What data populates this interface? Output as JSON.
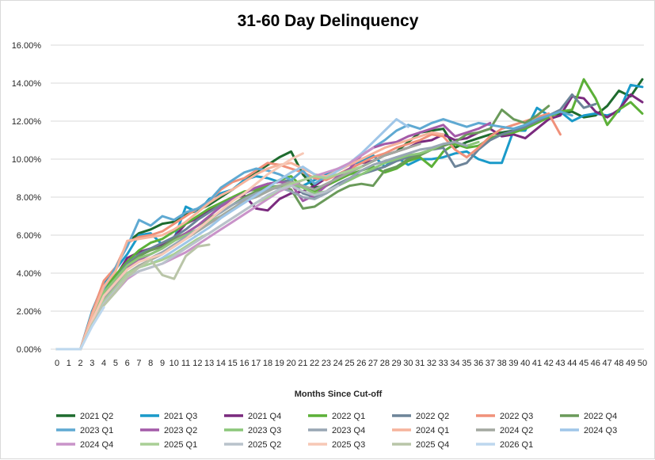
{
  "chart_data": {
    "type": "line",
    "title": "31-60 Day Delinquency",
    "xlabel": "Months Since Cut-off",
    "ylabel": "",
    "x": [
      0,
      1,
      2,
      3,
      4,
      5,
      6,
      7,
      8,
      9,
      10,
      11,
      12,
      13,
      14,
      15,
      16,
      17,
      18,
      19,
      20,
      21,
      22,
      23,
      24,
      25,
      26,
      27,
      28,
      29,
      30,
      31,
      32,
      33,
      34,
      35,
      36,
      37,
      38,
      39,
      40,
      41,
      42,
      43,
      44,
      45,
      46,
      47,
      48,
      49,
      50
    ],
    "x_tick_labels": [
      "0",
      "1",
      "2",
      "3",
      "4",
      "5",
      "6",
      "7",
      "8",
      "9",
      "10",
      "11",
      "12",
      "13",
      "14",
      "15",
      "16",
      "17",
      "18",
      "19",
      "20",
      "21",
      "22",
      "23",
      "24",
      "25",
      "26",
      "27",
      "28",
      "29",
      "30",
      "31",
      "32",
      "33",
      "34",
      "35",
      "36",
      "37",
      "38",
      "39",
      "40",
      "41",
      "42",
      "43",
      "44",
      "45",
      "46",
      "47",
      "48",
      "49",
      "50"
    ],
    "y_tick_labels": [
      "0.00%",
      "2.00%",
      "4.00%",
      "6.00%",
      "8.00%",
      "10.00%",
      "12.00%",
      "14.00%",
      "16.00%"
    ],
    "ylim": [
      0,
      16
    ],
    "y_format": "percent",
    "grid": "horizontal",
    "legend_position": "bottom",
    "series": [
      {
        "name": "2021 Q2",
        "color": "#1e6b2e",
        "values": [
          0,
          0,
          0,
          1.5,
          3.0,
          4.2,
          5.6,
          6.1,
          6.3,
          6.6,
          6.7,
          7.1,
          7.3,
          7.6,
          8.0,
          8.4,
          8.9,
          9.3,
          9.7,
          10.1,
          10.4,
          9.2,
          8.5,
          8.6,
          9.0,
          9.3,
          9.6,
          9.9,
          10.2,
          10.4,
          10.9,
          11.4,
          11.5,
          11.6,
          10.6,
          10.9,
          11.1,
          11.3,
          11.4,
          11.5,
          11.7,
          12.0,
          12.3,
          12.4,
          12.5,
          12.2,
          12.3,
          12.8,
          13.6,
          13.3,
          14.2
        ]
      },
      {
        "name": "2021 Q3",
        "color": "#1a9ac9",
        "values": [
          0,
          0,
          0,
          2.0,
          3.5,
          4.2,
          5.0,
          6.0,
          6.1,
          5.5,
          5.8,
          7.5,
          7.2,
          7.9,
          8.2,
          8.4,
          8.9,
          9.1,
          9.0,
          8.8,
          8.7,
          8.6,
          8.9,
          9.2,
          9.5,
          9.7,
          9.9,
          10.2,
          9.6,
          10.1,
          9.7,
          10.0,
          10.0,
          10.1,
          10.3,
          10.4,
          10.0,
          9.8,
          9.8,
          11.5,
          11.5,
          12.7,
          12.3,
          12.5,
          12.0,
          12.3,
          12.4,
          12.3,
          12.5,
          13.9,
          13.8
        ]
      },
      {
        "name": "2021 Q4",
        "color": "#7a2a7e",
        "values": [
          0,
          0,
          0,
          1.8,
          3.3,
          3.8,
          4.8,
          5.1,
          5.3,
          5.5,
          5.9,
          6.6,
          6.9,
          7.3,
          7.6,
          7.9,
          8.1,
          7.4,
          7.3,
          7.9,
          8.2,
          8.3,
          8.6,
          9.0,
          9.2,
          9.5,
          9.8,
          9.9,
          10.2,
          10.4,
          10.6,
          10.9,
          11.0,
          11.3,
          11.0,
          11.1,
          11.4,
          11.6,
          11.2,
          11.3,
          11.1,
          11.6,
          12.1,
          12.3,
          13.3,
          13.2,
          12.5,
          12.2,
          12.6,
          13.4,
          13.0
        ]
      },
      {
        "name": "2022 Q1",
        "color": "#5cb038",
        "values": [
          0,
          0,
          0,
          1.7,
          3.1,
          3.9,
          4.6,
          5.2,
          5.6,
          5.8,
          6.2,
          6.6,
          7.0,
          7.4,
          7.7,
          8.0,
          8.3,
          8.4,
          8.6,
          8.9,
          9.1,
          8.5,
          8.3,
          8.6,
          8.9,
          9.2,
          9.4,
          9.6,
          9.3,
          9.5,
          9.9,
          10.1,
          9.6,
          10.4,
          10.8,
          10.6,
          10.7,
          11.1,
          11.3,
          11.4,
          11.6,
          11.9,
          12.2,
          12.5,
          12.6,
          14.2,
          13.2,
          11.8,
          12.6,
          13.0,
          12.4
        ]
      },
      {
        "name": "2022 Q2",
        "color": "#6d8499",
        "values": [
          0,
          0,
          0,
          1.6,
          3.0,
          3.7,
          4.5,
          5.0,
          5.3,
          5.6,
          5.9,
          6.3,
          6.8,
          7.2,
          7.6,
          7.9,
          8.2,
          8.5,
          8.7,
          8.8,
          8.9,
          8.2,
          8.0,
          8.3,
          8.7,
          9.0,
          9.2,
          9.4,
          9.6,
          9.9,
          10.1,
          10.3,
          10.5,
          10.6,
          9.6,
          9.8,
          10.5,
          11.0,
          11.3,
          11.5,
          11.7,
          12.0,
          12.3,
          12.6,
          13.4,
          12.7,
          12.9,
          null,
          null,
          null,
          null
        ]
      },
      {
        "name": "2022 Q3",
        "color": "#f0917a",
        "values": [
          0,
          0,
          0,
          1.9,
          3.6,
          4.3,
          5.6,
          5.9,
          6.0,
          6.2,
          6.6,
          7.0,
          7.4,
          7.8,
          8.4,
          8.8,
          9.0,
          9.4,
          9.8,
          9.7,
          9.5,
          9.3,
          9.0,
          8.9,
          9.2,
          9.5,
          9.8,
          10.1,
          10.3,
          10.6,
          10.8,
          11.0,
          11.3,
          11.2,
          10.5,
          10.1,
          10.6,
          11.2,
          11.6,
          11.8,
          12.0,
          12.2,
          12.4,
          11.3,
          null,
          null,
          null,
          null,
          null,
          null,
          null
        ]
      },
      {
        "name": "2022 Q4",
        "color": "#6a9a5a",
        "values": [
          0,
          0,
          0,
          1.5,
          2.8,
          3.6,
          4.4,
          4.9,
          5.2,
          5.4,
          5.8,
          6.1,
          6.5,
          6.9,
          7.2,
          7.6,
          8.0,
          8.3,
          8.5,
          8.6,
          8.4,
          7.4,
          7.5,
          7.9,
          8.3,
          8.6,
          8.7,
          8.6,
          9.4,
          9.6,
          10.0,
          10.2,
          10.5,
          10.7,
          10.9,
          11.3,
          11.4,
          11.6,
          12.6,
          12.1,
          11.9,
          12.3,
          12.8,
          null,
          null,
          null,
          null,
          null,
          null,
          null,
          null
        ]
      },
      {
        "name": "2023 Q1",
        "color": "#5fa9d2",
        "values": [
          0,
          0,
          0,
          1.6,
          3.2,
          4.3,
          5.4,
          6.8,
          6.5,
          7.0,
          6.8,
          7.2,
          7.4,
          7.8,
          8.5,
          8.9,
          9.3,
          9.5,
          9.4,
          9.2,
          8.9,
          9.4,
          8.7,
          9.1,
          9.4,
          9.7,
          10.2,
          10.6,
          11.0,
          11.5,
          11.8,
          11.6,
          11.9,
          12.1,
          11.9,
          11.7,
          11.9,
          11.8,
          11.7,
          11.6,
          11.8,
          12.1,
          12.3,
          12.5,
          12.3,
          null,
          null,
          null,
          null,
          null,
          null
        ]
      },
      {
        "name": "2023 Q2",
        "color": "#a35aa8",
        "values": [
          0,
          0,
          0,
          1.5,
          3.0,
          3.6,
          4.3,
          4.7,
          5.0,
          5.3,
          5.7,
          6.1,
          6.5,
          7.0,
          7.5,
          7.9,
          8.2,
          8.5,
          8.7,
          8.8,
          8.7,
          7.8,
          8.1,
          8.6,
          9.1,
          9.5,
          10.2,
          10.6,
          10.8,
          10.9,
          11.2,
          11.4,
          11.6,
          11.8,
          11.2,
          11.4,
          11.6,
          11.9,
          null,
          null,
          null,
          null,
          null,
          null,
          null,
          null,
          null,
          null,
          null,
          null,
          null
        ]
      },
      {
        "name": "2023 Q3",
        "color": "#8cc77a",
        "values": [
          0,
          0,
          0,
          1.6,
          3.0,
          3.7,
          4.4,
          4.8,
          5.0,
          5.3,
          5.7,
          6.0,
          6.3,
          6.7,
          7.0,
          7.4,
          7.8,
          8.1,
          8.4,
          8.6,
          8.7,
          8.5,
          8.2,
          8.3,
          8.6,
          8.9,
          9.2,
          9.5,
          9.8,
          10.0,
          10.2,
          10.3,
          10.5,
          10.8,
          10.9,
          10.7,
          10.9,
          null,
          null,
          null,
          null,
          null,
          null,
          null,
          null,
          null,
          null,
          null,
          null,
          null,
          null
        ]
      },
      {
        "name": "2023 Q4",
        "color": "#98a6b4",
        "values": [
          0,
          0,
          0,
          1.4,
          2.7,
          3.4,
          4.2,
          4.6,
          4.8,
          5.1,
          5.5,
          5.9,
          6.3,
          6.8,
          7.2,
          7.6,
          7.9,
          8.2,
          8.4,
          8.5,
          8.3,
          8.0,
          7.9,
          8.2,
          8.6,
          9.0,
          9.4,
          9.7,
          9.9,
          10.1,
          10.3,
          10.5,
          10.6,
          10.8,
          10.9,
          10.7,
          null,
          null,
          null,
          null,
          null,
          null,
          null,
          null,
          null,
          null,
          null,
          null,
          null,
          null,
          null
        ]
      },
      {
        "name": "2024 Q1",
        "color": "#f6b39c",
        "values": [
          0,
          0,
          0,
          1.8,
          3.3,
          4.1,
          5.7,
          5.8,
          5.9,
          6.0,
          6.3,
          6.7,
          7.2,
          7.7,
          8.1,
          8.4,
          8.8,
          9.2,
          9.5,
          9.7,
          9.8,
          9.5,
          9.2,
          9.1,
          9.4,
          9.7,
          10.0,
          10.3,
          10.6,
          10.8,
          11.0,
          11.2,
          11.4,
          11.3,
          null,
          null,
          null,
          null,
          null,
          null,
          null,
          null,
          null,
          null,
          null,
          null,
          null,
          null,
          null,
          null,
          null
        ]
      },
      {
        "name": "2024 Q2",
        "color": "#a3a8a0",
        "values": [
          0,
          0,
          0,
          1.4,
          2.6,
          3.3,
          4.0,
          4.4,
          4.7,
          5.0,
          5.4,
          5.8,
          6.2,
          6.6,
          7.0,
          7.4,
          7.8,
          8.0,
          8.3,
          8.6,
          8.8,
          8.6,
          8.4,
          8.7,
          9.0,
          9.3,
          9.6,
          9.9,
          10.2,
          10.4,
          10.6,
          10.8,
          null,
          null,
          null,
          null,
          null,
          null,
          null,
          null,
          null,
          null,
          null,
          null,
          null,
          null,
          null,
          null,
          null,
          null,
          null
        ]
      },
      {
        "name": "2024 Q3",
        "color": "#9fc6e8",
        "values": [
          0,
          0,
          0,
          1.3,
          2.5,
          3.2,
          3.9,
          4.3,
          4.5,
          4.8,
          5.2,
          5.6,
          6.0,
          6.4,
          6.9,
          7.3,
          7.7,
          8.1,
          8.5,
          8.9,
          9.3,
          9.6,
          9.2,
          9.0,
          9.4,
          9.8,
          10.3,
          10.9,
          11.5,
          12.1,
          11.7,
          null,
          null,
          null,
          null,
          null,
          null,
          null,
          null,
          null,
          null,
          null,
          null,
          null,
          null,
          null,
          null,
          null,
          null,
          null,
          null
        ]
      },
      {
        "name": "2024 Q4",
        "color": "#c993c9",
        "values": [
          0,
          0,
          0,
          1.3,
          2.4,
          3.0,
          3.7,
          4.1,
          4.3,
          4.5,
          4.8,
          5.1,
          5.5,
          5.9,
          6.3,
          6.7,
          7.1,
          7.5,
          7.9,
          8.3,
          8.6,
          8.9,
          9.1,
          9.3,
          9.5,
          9.8,
          10.2,
          10.6,
          null,
          null,
          null,
          null,
          null,
          null,
          null,
          null,
          null,
          null,
          null,
          null,
          null,
          null,
          null,
          null,
          null,
          null,
          null,
          null,
          null,
          null,
          null
        ]
      },
      {
        "name": "2025 Q1",
        "color": "#a9cf95",
        "values": [
          0,
          0,
          0,
          1.4,
          2.5,
          3.2,
          4.0,
          4.3,
          4.5,
          4.7,
          5.0,
          5.4,
          5.8,
          6.1,
          6.5,
          6.9,
          7.3,
          7.7,
          8.0,
          8.4,
          8.7,
          8.9,
          9.1,
          9.0,
          9.2,
          9.4,
          9.6,
          null,
          null,
          null,
          null,
          null,
          null,
          null,
          null,
          null,
          null,
          null,
          null,
          null,
          null,
          null,
          null,
          null,
          null,
          null,
          null,
          null,
          null,
          null,
          null
        ]
      },
      {
        "name": "2025 Q2",
        "color": "#b9c2cb",
        "values": [
          0,
          0,
          0,
          1.3,
          2.4,
          3.1,
          3.8,
          4.1,
          4.3,
          4.5,
          4.9,
          5.3,
          5.7,
          6.1,
          6.5,
          6.9,
          7.3,
          7.7,
          8.1,
          8.4,
          8.6,
          8.3,
          8.1,
          8.3,
          8.6,
          null,
          null,
          null,
          null,
          null,
          null,
          null,
          null,
          null,
          null,
          null,
          null,
          null,
          null,
          null,
          null,
          null,
          null,
          null,
          null,
          null,
          null,
          null,
          null,
          null,
          null
        ]
      },
      {
        "name": "2025 Q3",
        "color": "#f7c8b6",
        "values": [
          0,
          0,
          0,
          1.5,
          2.8,
          3.5,
          4.2,
          4.6,
          4.8,
          5.0,
          5.4,
          5.8,
          6.3,
          6.8,
          7.3,
          7.8,
          8.2,
          8.7,
          9.2,
          9.6,
          10.0,
          10.3,
          null,
          null,
          null,
          null,
          null,
          null,
          null,
          null,
          null,
          null,
          null,
          null,
          null,
          null,
          null,
          null,
          null,
          null,
          null,
          null,
          null,
          null,
          null,
          null,
          null,
          null,
          null,
          null,
          null
        ]
      },
      {
        "name": "2025 Q4",
        "color": "#b9c5a8",
        "values": [
          0,
          0,
          0,
          1.3,
          2.3,
          3.0,
          3.8,
          4.3,
          4.7,
          3.9,
          3.7,
          4.9,
          5.4,
          5.5,
          null,
          null,
          null,
          null,
          null,
          null,
          null,
          null,
          null,
          null,
          null,
          null,
          null,
          null,
          null,
          null,
          null,
          null,
          null,
          null,
          null,
          null,
          null,
          null,
          null,
          null,
          null,
          null,
          null,
          null,
          null,
          null,
          null,
          null,
          null,
          null,
          null
        ]
      },
      {
        "name": "2026 Q1",
        "color": "#bdd7ee",
        "values": [
          0,
          0,
          0,
          1.2,
          2.2,
          null,
          null,
          null,
          null,
          null,
          null,
          null,
          null,
          null,
          null,
          null,
          null,
          null,
          null,
          null,
          null,
          null,
          null,
          null,
          null,
          null,
          null,
          null,
          null,
          null,
          null,
          null,
          null,
          null,
          null,
          null,
          null,
          null,
          null,
          null,
          null,
          null,
          null,
          null,
          null,
          null,
          null,
          null,
          null,
          null,
          null
        ]
      }
    ]
  }
}
